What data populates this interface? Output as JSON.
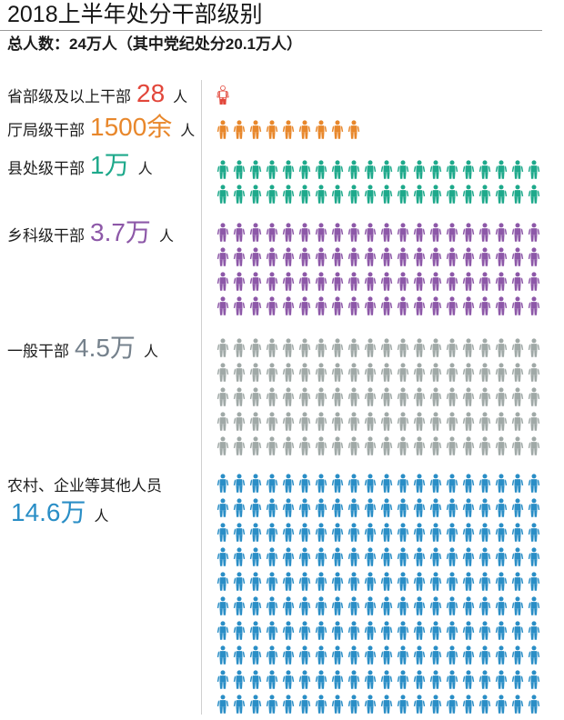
{
  "chart_data": {
    "type": "bar",
    "title": "2018上半年处分干部级别",
    "subtitle": "总人数：24万人（其中党纪处分20.1万人）",
    "unit": "人",
    "categories": [
      "省部级及以上干部",
      "厅局级干部",
      "县处级干部",
      "乡科级干部",
      "一般干部",
      "农村、企业等其他人员"
    ],
    "values": [
      28,
      1500,
      10000,
      37000,
      45000,
      146000
    ],
    "value_labels": [
      "28",
      "1500余",
      "1万",
      "3.7万",
      "4.5万",
      "14.6万"
    ],
    "colors": [
      "#e2463a",
      "#e8872b",
      "#1ea98b",
      "#8d58a8",
      "#a0a9a7",
      "#2a8ec6"
    ],
    "label_colors": [
      "#e2463a",
      "#e8872b",
      "#1ea98b",
      "#8d58a8",
      "#75818c",
      "#2a8ec6"
    ],
    "icon": "person-icon",
    "icon_counts": [
      0.3,
      9,
      40,
      80,
      100,
      200
    ]
  }
}
